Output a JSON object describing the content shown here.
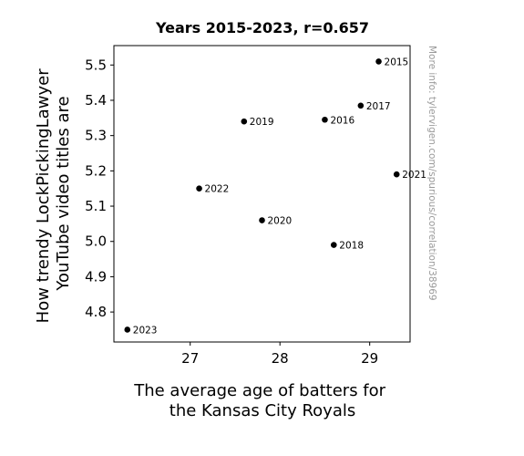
{
  "chart_data": {
    "type": "scatter",
    "title": "Years 2015-2023, r=0.657",
    "xlabel": [
      "The average age of batters for",
      "the Kansas City Royals"
    ],
    "ylabel": [
      "How trendy LockPickingLawyer",
      "YouTube video titles are"
    ],
    "xlim": [
      26.15,
      29.45
    ],
    "ylim": [
      4.715,
      5.555
    ],
    "xticks": [
      27,
      28,
      29
    ],
    "yticks": [
      4.8,
      4.9,
      5.0,
      5.1,
      5.2,
      5.3,
      5.4,
      5.5
    ],
    "points": [
      {
        "label": "2015",
        "x": 29.1,
        "y": 5.51
      },
      {
        "label": "2016",
        "x": 28.5,
        "y": 5.345
      },
      {
        "label": "2017",
        "x": 28.9,
        "y": 5.385
      },
      {
        "label": "2018",
        "x": 28.6,
        "y": 4.99
      },
      {
        "label": "2019",
        "x": 27.6,
        "y": 5.34
      },
      {
        "label": "2020",
        "x": 27.8,
        "y": 5.06
      },
      {
        "label": "2021",
        "x": 29.3,
        "y": 5.19
      },
      {
        "label": "2022",
        "x": 27.1,
        "y": 5.15
      },
      {
        "label": "2023",
        "x": 26.3,
        "y": 4.75
      }
    ],
    "grid": false,
    "point_color": "#000000"
  },
  "watermark": "More info: tylervigen.com/spurious/correlation/38969"
}
